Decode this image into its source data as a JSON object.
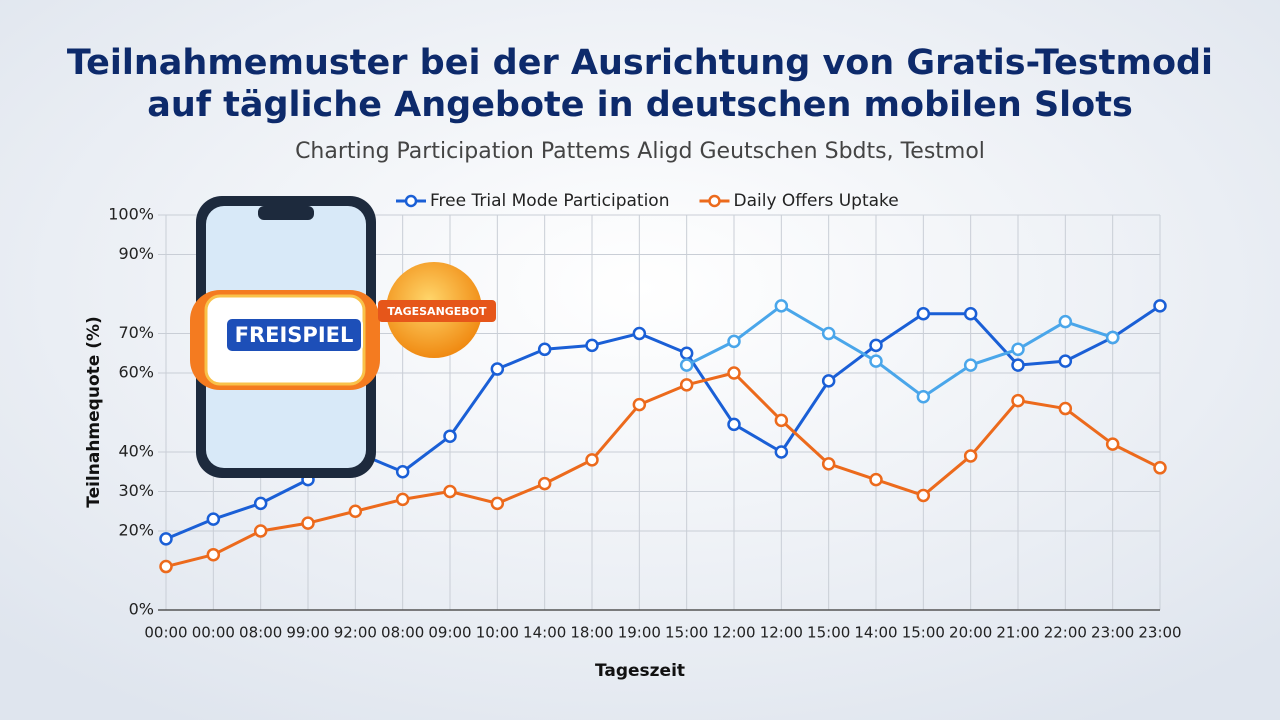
{
  "chart_data": {
    "type": "line",
    "title": "Teilnahmemuster bei der Ausrichtung von Gratis-Testmodi",
    "title_line2": "auf tägliche Angebote in deutschen mobilen Slots",
    "subtitle": "Charting Participation Pattems Aligd Geutschen Sbdts, Testmol",
    "x_label": "Tageszeit",
    "y_label": "Teilnahmequote (%)",
    "categories": [
      "00:00",
      "00:00",
      "08:00",
      "99:00",
      "92:00",
      "08:00",
      "09:00",
      "10:00",
      "14:00",
      "18:00",
      "19:00",
      "15:00",
      "12:00",
      "12:00",
      "15:00",
      "14:00",
      "15:00",
      "20:00",
      "21:00",
      "22:00",
      "23:00",
      "23:00"
    ],
    "series": [
      {
        "name": "Free Trial Mode Participation",
        "color": "#1a5fd6",
        "values": [
          18,
          23,
          27,
          33,
          40,
          35,
          44,
          61,
          66,
          67,
          70,
          65,
          47,
          40,
          58,
          67,
          75,
          75,
          62,
          63,
          69,
          77
        ]
      },
      {
        "color": "#4aa6ea",
        "values": [
          null,
          null,
          null,
          null,
          null,
          null,
          null,
          null,
          null,
          null,
          null,
          62,
          68,
          77,
          70,
          63,
          54,
          62,
          66,
          73,
          69,
          null
        ]
      },
      {
        "name": "Daily Offers Uptake",
        "color": "#ec6a1c",
        "values": [
          11,
          14,
          20,
          22,
          25,
          28,
          30,
          27,
          32,
          38,
          52,
          57,
          60,
          48,
          37,
          33,
          29,
          39,
          53,
          51,
          42,
          36
        ]
      }
    ],
    "ylim": [
      0,
      100
    ],
    "yticks": [
      {
        "value": 0,
        "label": "0%"
      },
      {
        "value": 20,
        "label": "20%"
      },
      {
        "value": 30,
        "label": "30%"
      },
      {
        "value": 40,
        "label": "40%"
      },
      {
        "value": 60,
        "label": "60%"
      },
      {
        "value": 70,
        "label": "70%"
      },
      {
        "value": 90,
        "label": "90%"
      },
      {
        "value": 100,
        "label": "100%"
      }
    ],
    "grid": true
  },
  "illustration": {
    "reel_label": "FREISPIEL",
    "badge_label": "TAGESANGEBOT"
  }
}
